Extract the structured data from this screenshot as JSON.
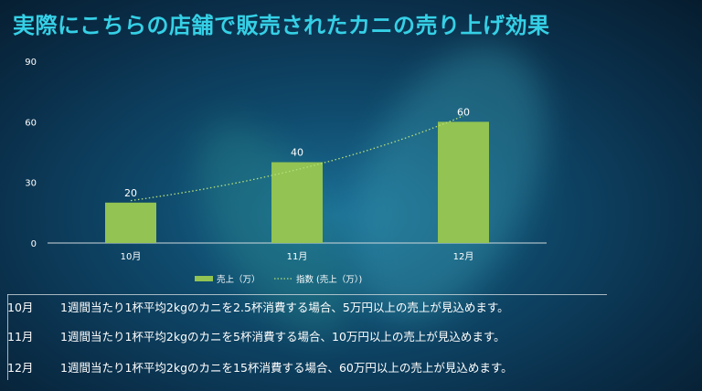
{
  "title": "実際にこちらの店舗で販売されたカニの売り上げ効果",
  "chart_data": {
    "type": "bar",
    "categories": [
      "10月",
      "11月",
      "12月"
    ],
    "series": [
      {
        "name": "売上（万）",
        "values": [
          20,
          40,
          60
        ]
      }
    ],
    "trendline": {
      "name": "指数 (売上（万）)",
      "type": "exponential"
    },
    "yticks": [
      "0",
      "30",
      "60",
      "90"
    ],
    "ylim": [
      0,
      90
    ],
    "grid": false,
    "legend": "bottom",
    "colors": {
      "bar": "#92c353",
      "trend": "#b8e07a"
    }
  },
  "notes": [
    {
      "month": "10月",
      "text": "1週間当たり1杯平均2kgのカニを2.5杯消費する場合、5万円以上の売上が見込めます。"
    },
    {
      "month": "11月",
      "text": "1週間当たり1杯平均2kgのカニを5杯消費する場合、10万円以上の売上が見込めます。"
    },
    {
      "month": "12月",
      "text": "1週間当たり1杯平均2kgのカニを15杯消費する場合、60万円以上の売上が見込めます。"
    }
  ]
}
